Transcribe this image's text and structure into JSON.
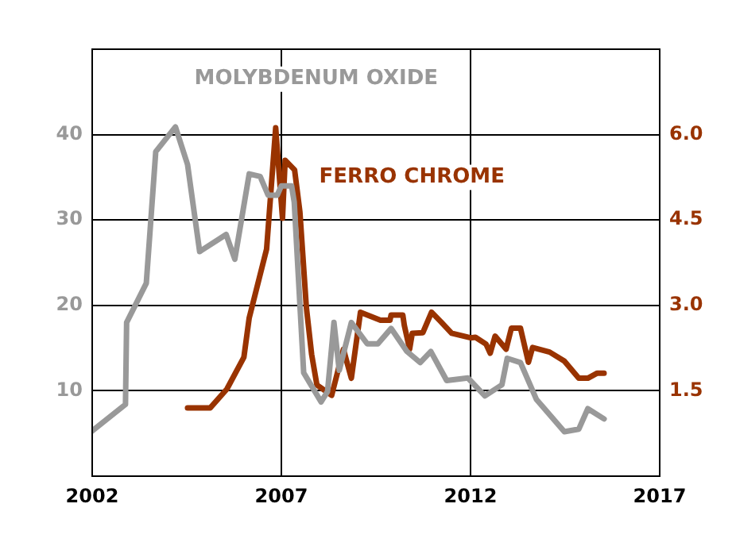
{
  "chart_data": {
    "type": "line",
    "xlim": [
      2002,
      2017
    ],
    "xticks": [
      2002,
      2007,
      2012,
      2017
    ],
    "ylim": [
      0,
      50
    ],
    "yticks": [
      10,
      20,
      30,
      40
    ],
    "y2lim": [
      0,
      7.5
    ],
    "y2ticks": [
      {
        "value": 1.5,
        "label": "1.5"
      },
      {
        "value": 3,
        "label": "3.0"
      },
      {
        "value": 4.5,
        "label": "4.5"
      },
      {
        "value": 6,
        "label": "6.0"
      }
    ],
    "grid": true,
    "legend": false,
    "marker": "none",
    "line_style": "solid",
    "series": [
      {
        "name": "MOLYBDENUM OXIDE",
        "color": "#999999",
        "x": [
          2002.0,
          2002.88,
          2002.91,
          2003.43,
          2003.68,
          2004.2,
          2004.52,
          2004.84,
          2005.54,
          2005.77,
          2006.15,
          2006.44,
          2006.65,
          2006.89,
          2007.0,
          2007.27,
          2007.34,
          2007.59,
          2008.05,
          2008.22,
          2008.39,
          2008.53,
          2008.85,
          2009.27,
          2009.55,
          2009.9,
          2010.32,
          2010.67,
          2010.95,
          2011.37,
          2011.93,
          2012.38,
          2012.83,
          2012.97,
          2013.32,
          2013.74,
          2014.48,
          2014.86,
          2015.1,
          2015.53
        ],
        "values": [
          5.3,
          8.4,
          18.0,
          22.6,
          38.0,
          40.9,
          36.5,
          26.3,
          28.3,
          25.4,
          35.4,
          35.1,
          32.9,
          32.9,
          34.0,
          34.0,
          32.1,
          12.1,
          8.7,
          9.9,
          18.0,
          12.4,
          18.0,
          15.5,
          15.5,
          17.3,
          14.6,
          13.3,
          14.6,
          11.2,
          11.5,
          9.4,
          10.7,
          13.8,
          13.3,
          9.0,
          5.2,
          5.5,
          7.9,
          6.7
        ]
      },
      {
        "name": "FERRO CHROME",
        "color": "#993300",
        "axis": "y2",
        "x": [
          2004.52,
          2005.12,
          2005.56,
          2006.01,
          2006.15,
          2006.61,
          2006.85,
          2007.03,
          2007.1,
          2007.35,
          2007.49,
          2007.66,
          2007.8,
          2007.94,
          2008.33,
          2008.64,
          2008.85,
          2009.09,
          2009.62,
          2009.87,
          2009.9,
          2010.21,
          2010.25,
          2010.39,
          2010.46,
          2010.74,
          2010.97,
          2011.22,
          2011.5,
          2012.0,
          2012.13,
          2012.41,
          2012.52,
          2012.65,
          2012.94,
          2013.08,
          2013.32,
          2013.53,
          2013.64,
          2014.09,
          2014.48,
          2014.86,
          2015.1,
          2015.35,
          2015.53
        ],
        "values": [
          1.2,
          1.2,
          1.53,
          2.09,
          2.78,
          3.99,
          6.12,
          4.53,
          5.55,
          5.38,
          4.64,
          2.97,
          2.14,
          1.6,
          1.42,
          2.23,
          1.72,
          2.88,
          2.74,
          2.74,
          2.83,
          2.83,
          2.65,
          2.23,
          2.51,
          2.52,
          2.88,
          2.71,
          2.51,
          2.43,
          2.44,
          2.32,
          2.16,
          2.46,
          2.23,
          2.6,
          2.6,
          2.0,
          2.26,
          2.18,
          2.02,
          1.72,
          1.72,
          1.81,
          1.81
        ]
      }
    ]
  }
}
